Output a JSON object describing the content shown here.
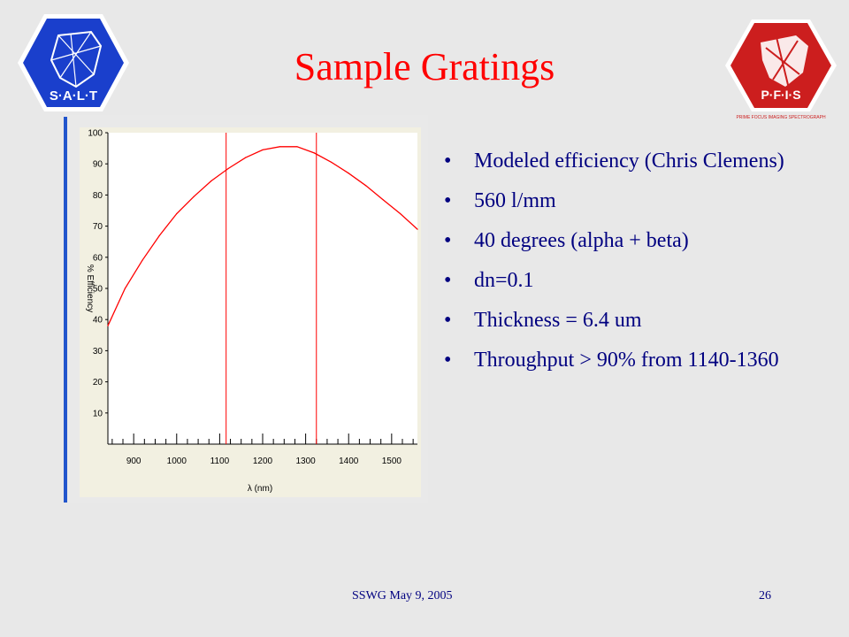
{
  "slide": {
    "title": "Sample Gratings",
    "logos": {
      "left_text": "S·A·L·T",
      "right_text": "P·F·I·S",
      "right_caption": "PRIME FOCUS IMAGING SPECTROGRAPH"
    },
    "bullets": [
      "Modeled efficiency (Chris Clemens)",
      "560 l/mm",
      "40 degrees (alpha + beta)",
      "dn=0.1",
      "Thickness = 6.4 um",
      "Throughput > 90% from 1140-1360"
    ],
    "bullet_glyph": "•",
    "footer": {
      "left": "SSWG May 9, 2005",
      "page_number": "26"
    }
  },
  "colors": {
    "title": "#ff0000",
    "text": "#000080",
    "curve": "#ff0000",
    "background": "#e8e8e8",
    "chart_bg": "#f2f0e1",
    "accent_bar": "#2255cc"
  },
  "chart_data": {
    "type": "line",
    "title": "",
    "xlabel": "λ (nm)",
    "ylabel": "% Efficiency",
    "xlim": [
      840,
      1560
    ],
    "ylim": [
      0,
      100
    ],
    "x_ticks": [
      900,
      1000,
      1100,
      1200,
      1300,
      1400,
      1500
    ],
    "y_ticks": [
      10,
      20,
      30,
      40,
      50,
      60,
      70,
      80,
      90,
      100
    ],
    "grid": false,
    "series": [
      {
        "x": [
          840,
          880,
          920,
          960,
          1000,
          1040,
          1080,
          1120,
          1160,
          1200,
          1240,
          1280,
          1320,
          1360,
          1400,
          1440,
          1480,
          1520,
          1560
        ],
        "y": [
          38,
          50,
          59,
          67,
          74,
          79.5,
          84.5,
          88.5,
          92,
          94.5,
          95.5,
          95.5,
          93.5,
          90.5,
          87,
          83,
          78.5,
          74,
          69
        ]
      }
    ],
    "vertical_lines": [
      1115,
      1325
    ]
  }
}
